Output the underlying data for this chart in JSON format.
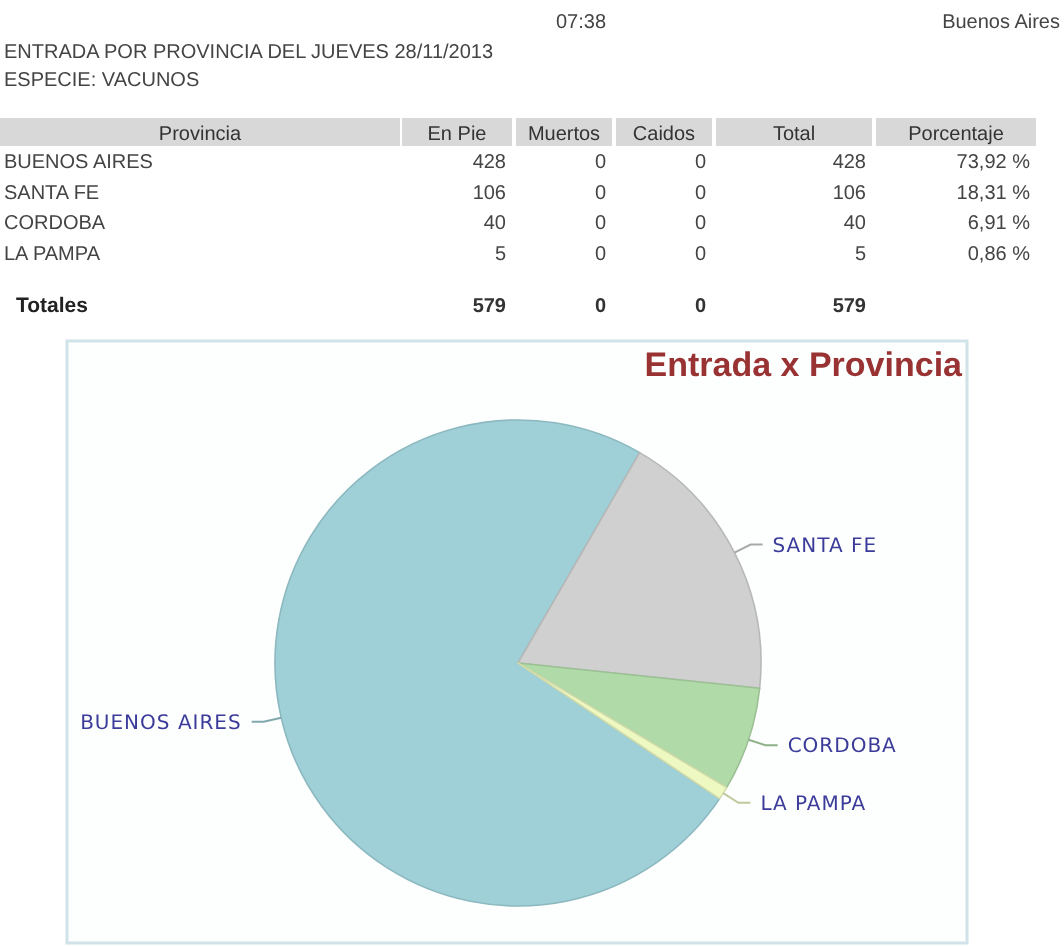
{
  "chart_data": [
    {
      "type": "other",
      "title": "ENTRADA POR PROVINCIA DEL JUEVES 28/11/2013",
      "subtitle": "ESPECIE: VACUNOS",
      "annotations": [
        "07:38",
        "Buenos Aires",
        "Totales"
      ],
      "xlabel": "Provincia",
      "categories": [
        "BUENOS AIRES",
        "SANTA FE",
        "CORDOBA",
        "LA PAMPA"
      ],
      "series": [
        {
          "name": "En Pie",
          "values": [
            428,
            106,
            40,
            5
          ]
        },
        {
          "name": "Muertos",
          "values": [
            0,
            0,
            0,
            0
          ]
        },
        {
          "name": "Caidos",
          "values": [
            0,
            0,
            0,
            0
          ]
        },
        {
          "name": "Total",
          "values": [
            428,
            106,
            40,
            5
          ]
        },
        {
          "name": "Porcentaje",
          "values": [
            73.92,
            18.31,
            6.91,
            0.86
          ],
          "value_labels": [
            "73,92 %",
            "18,31 %",
            "6,91 %",
            "0,86 %"
          ]
        }
      ],
      "data_labels": true,
      "totals": [
        "579",
        "0",
        "0",
        "579",
        null
      ]
    },
    {
      "type": "pie",
      "title": "Entrada x Provincia",
      "categories": [
        "BUENOS AIRES",
        "SANTA FE",
        "CORDOBA",
        "LA PAMPA"
      ],
      "values": [
        73.92,
        18.31,
        6.91,
        0.86
      ],
      "colors": [
        "#9fd0d8",
        "#d0d0d0",
        "#b0daa8",
        "#eef9c2"
      ]
    }
  ]
}
